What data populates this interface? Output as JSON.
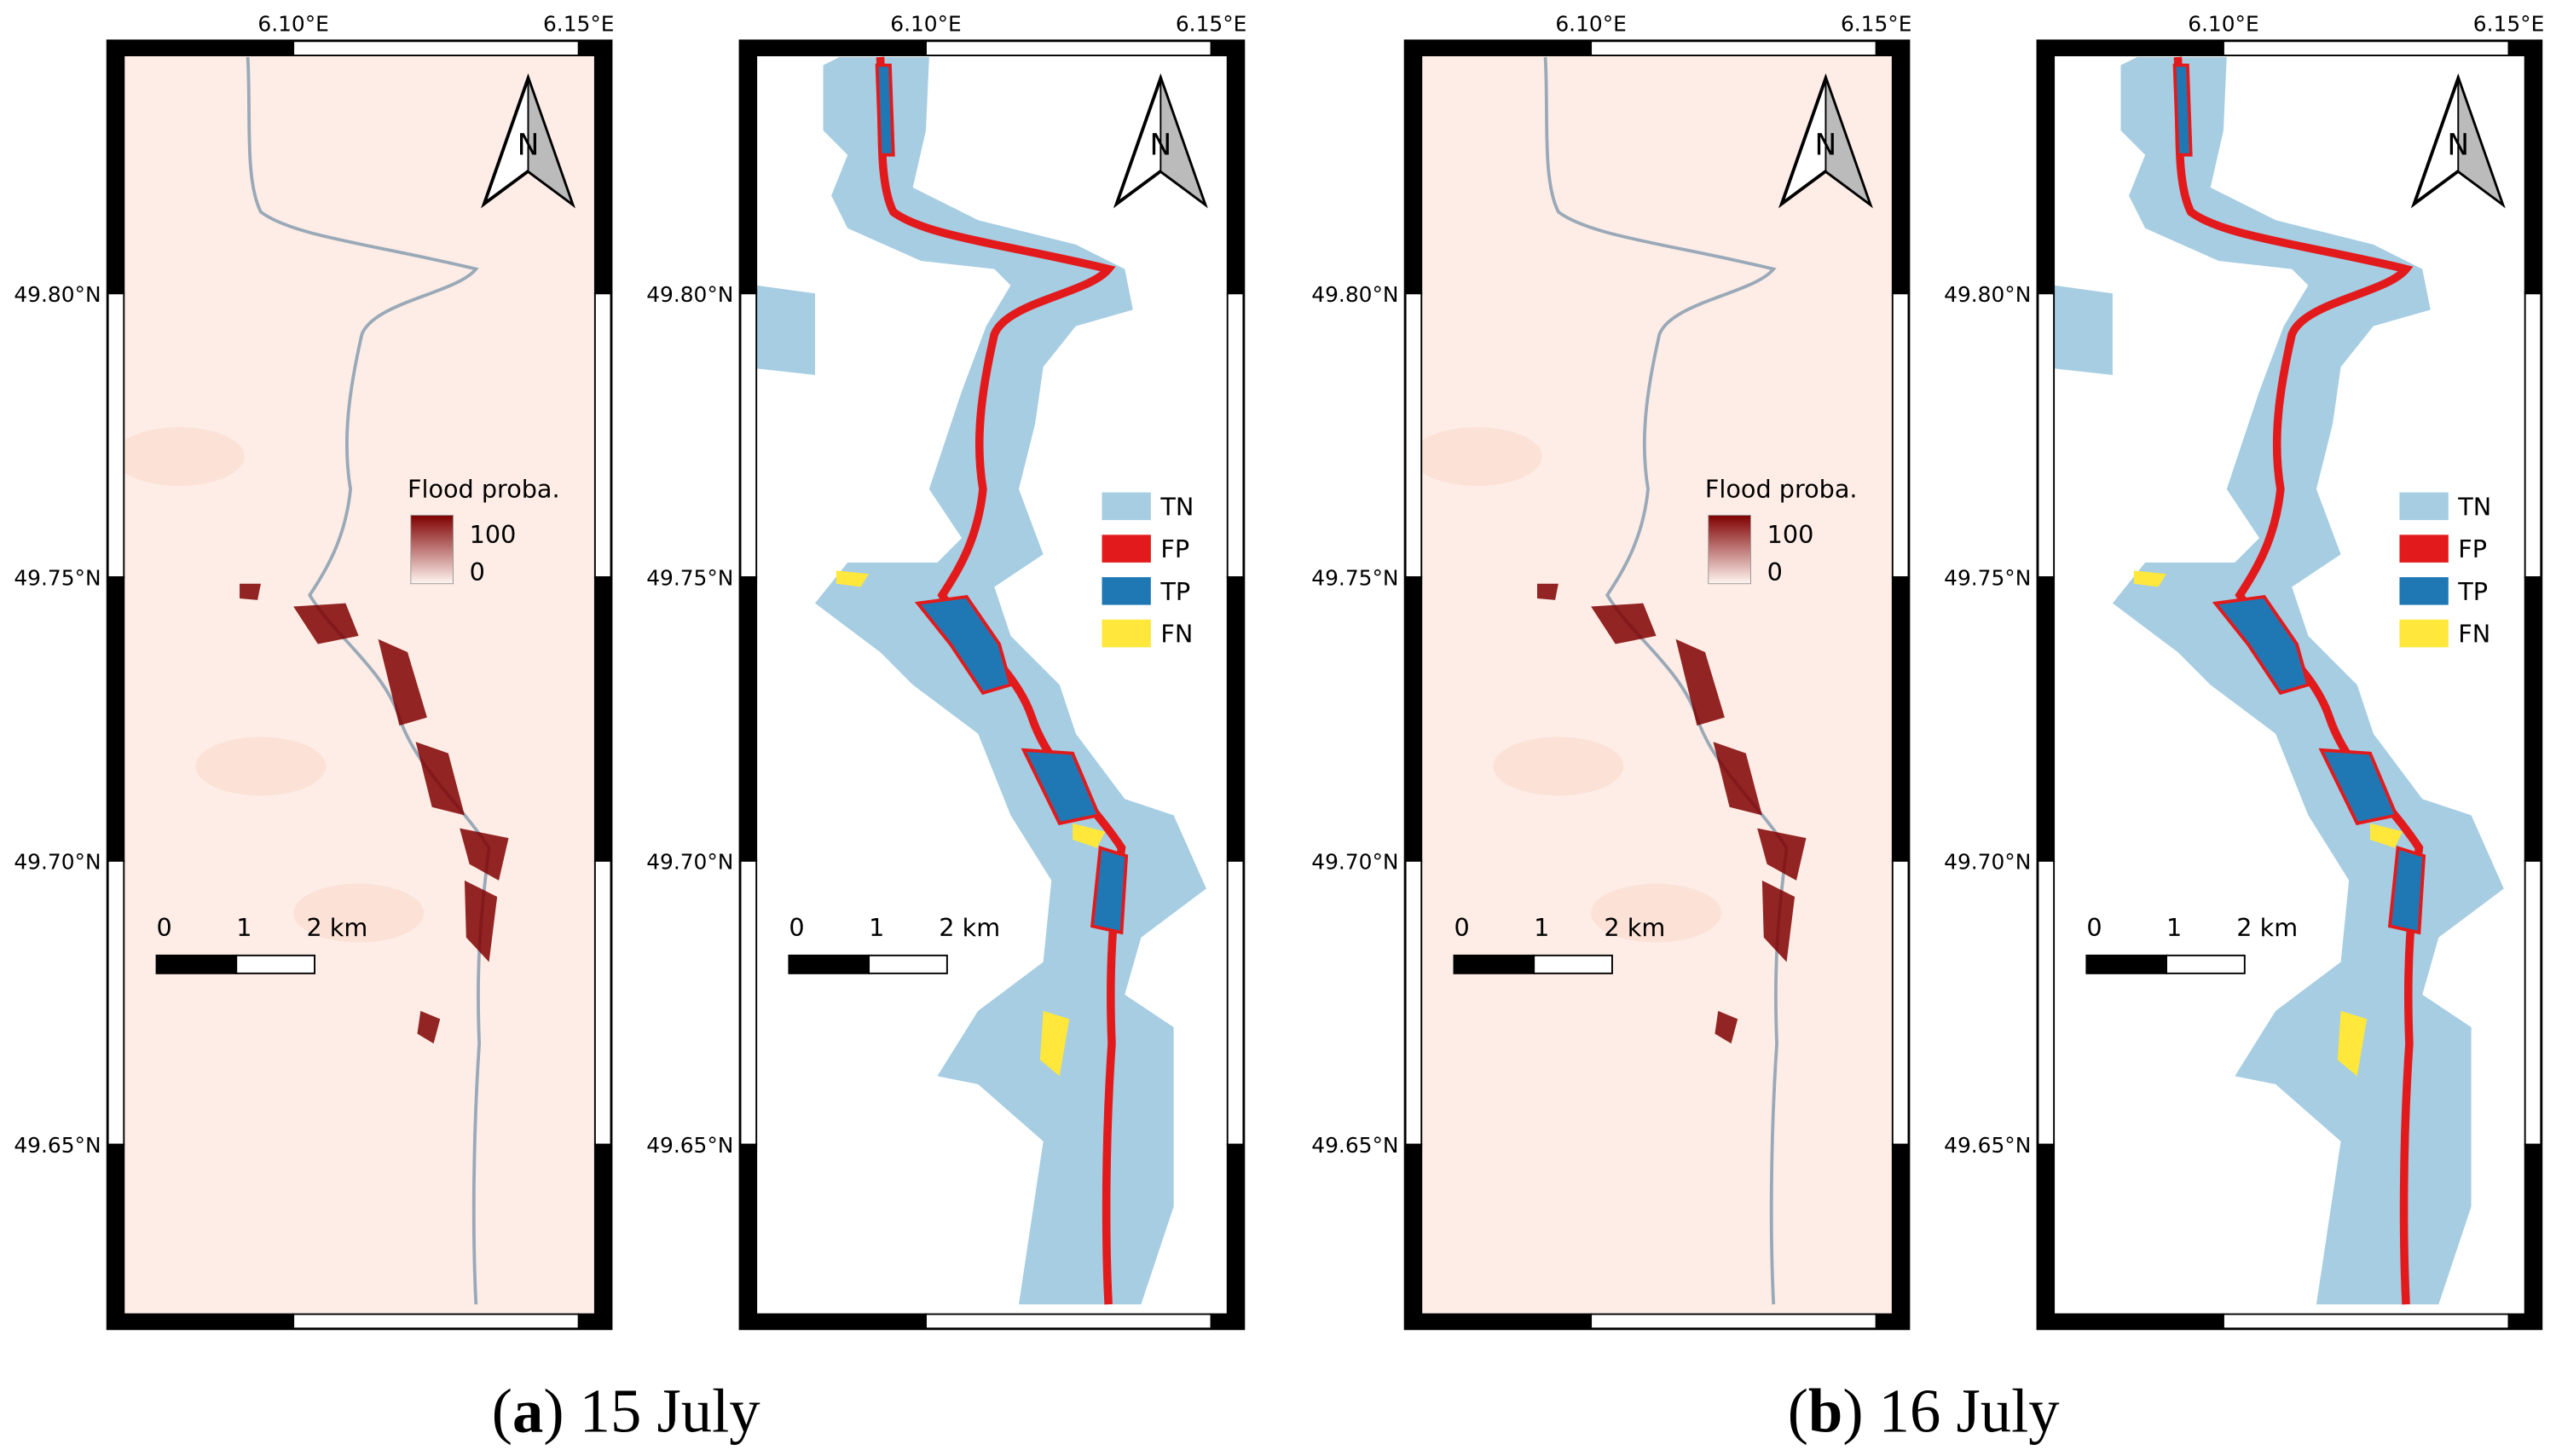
{
  "panels": [
    {
      "kind": "probability",
      "lon_labels": [
        "6.10°E",
        "6.15°E"
      ],
      "lat_labels": [
        "49.80°N",
        "49.75°N",
        "49.70°N",
        "49.65°N"
      ],
      "north": "N",
      "legend": {
        "title": "Flood proba.",
        "labels": [
          "100",
          "0"
        ],
        "colors": [
          "#7f0000",
          "#fff5f0"
        ]
      },
      "scale_bar": [
        "0",
        "1",
        "2 km"
      ]
    },
    {
      "kind": "classification",
      "lon_labels": [
        "6.10°E",
        "6.15°E"
      ],
      "lat_labels": [
        "49.80°N",
        "49.75°N",
        "49.70°N",
        "49.65°N"
      ],
      "north": "N",
      "legend": {
        "items": [
          {
            "label": "TN",
            "color": "#a6cde2"
          },
          {
            "label": "FP",
            "color": "#e31a1c"
          },
          {
            "label": "TP",
            "color": "#1f78b4"
          },
          {
            "label": "FN",
            "color": "#ffe73c"
          }
        ]
      },
      "scale_bar": [
        "0",
        "1",
        "2 km"
      ]
    },
    {
      "kind": "probability",
      "lon_labels": [
        "6.10°E",
        "6.15°E"
      ],
      "lat_labels": [
        "49.80°N",
        "49.75°N",
        "49.70°N",
        "49.65°N"
      ],
      "north": "N",
      "legend": {
        "title": "Flood proba.",
        "labels": [
          "100",
          "0"
        ],
        "colors": [
          "#7f0000",
          "#fff5f0"
        ]
      },
      "scale_bar": [
        "0",
        "1",
        "2 km"
      ]
    },
    {
      "kind": "classification",
      "lon_labels": [
        "6.10°E",
        "6.15°E"
      ],
      "lat_labels": [
        "49.80°N",
        "49.75°N",
        "49.70°N",
        "49.65°N"
      ],
      "north": "N",
      "legend": {
        "items": [
          {
            "label": "TN",
            "color": "#a6cde2"
          },
          {
            "label": "FP",
            "color": "#e31a1c"
          },
          {
            "label": "TP",
            "color": "#1f78b4"
          },
          {
            "label": "FN",
            "color": "#ffe73c"
          }
        ]
      },
      "scale_bar": [
        "0",
        "1",
        "2 km"
      ]
    }
  ],
  "captions": [
    [
      "(",
      "a",
      ") 15 July"
    ],
    [
      "(",
      "b",
      ") 16 July"
    ]
  ]
}
